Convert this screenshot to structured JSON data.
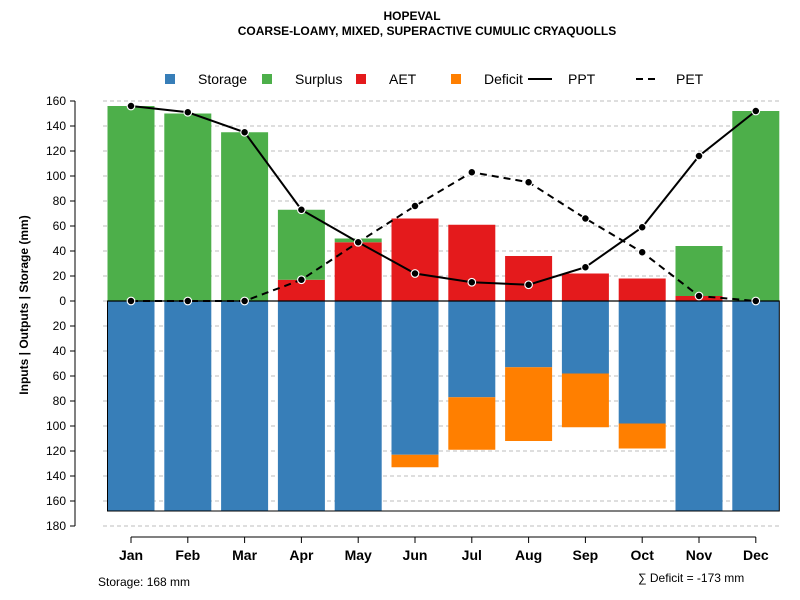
{
  "chart_data": {
    "type": "bar",
    "title": "HOPEVAL",
    "subtitle": "COARSE-LOAMY, MIXED, SUPERACTIVE CUMULIC CRYAQUOLLS",
    "ylabel": "Inputs | Outputs | Storage    (mm)",
    "ylim": [
      -180,
      160
    ],
    "ytick_values": [
      160,
      140,
      120,
      100,
      80,
      60,
      40,
      20,
      0,
      -20,
      -40,
      -60,
      -80,
      -100,
      -120,
      -140,
      -160,
      -180
    ],
    "ytick_labels": [
      "160",
      "140",
      "120",
      "100",
      "80",
      "60",
      "40",
      "20",
      "0",
      "20",
      "40",
      "60",
      "80",
      "100",
      "120",
      "140",
      "160",
      "180"
    ],
    "categories": [
      "Jan",
      "Feb",
      "Mar",
      "Apr",
      "May",
      "Jun",
      "Jul",
      "Aug",
      "Sep",
      "Oct",
      "Nov",
      "Dec"
    ],
    "legend": [
      {
        "label": "Storage",
        "kind": "square",
        "color": "#377EB8"
      },
      {
        "label": "Surplus",
        "kind": "square",
        "color": "#4DAF4A"
      },
      {
        "label": "AET",
        "kind": "square",
        "color": "#E41A1C"
      },
      {
        "label": "Deficit",
        "kind": "square",
        "color": "#FF7F00"
      },
      {
        "label": "PPT",
        "kind": "solid-line",
        "color": "#000000"
      },
      {
        "label": "PET",
        "kind": "dashed-line",
        "color": "#000000"
      }
    ],
    "series": [
      {
        "name": "Storage",
        "color": "#377EB8",
        "values": [
          168,
          168,
          168,
          168,
          168,
          123,
          77,
          53,
          58,
          98,
          168,
          168
        ]
      },
      {
        "name": "Deficit",
        "color": "#FF7F00",
        "values": [
          0,
          0,
          0,
          0,
          0,
          10,
          42,
          59,
          43,
          20,
          0,
          0
        ]
      },
      {
        "name": "AET",
        "color": "#E41A1C",
        "values": [
          0,
          0,
          0,
          17,
          47,
          66,
          61,
          36,
          22,
          18,
          4,
          0
        ]
      },
      {
        "name": "Surplus",
        "color": "#4DAF4A",
        "values": [
          156,
          150,
          135,
          56,
          3,
          0,
          0,
          0,
          0,
          0,
          40,
          152
        ]
      },
      {
        "name": "PPT",
        "color": "#000000",
        "style": "solid",
        "values": [
          156,
          151,
          135,
          73,
          47,
          22,
          15,
          13,
          27,
          59,
          116,
          152
        ]
      },
      {
        "name": "PET",
        "color": "#000000",
        "style": "dashed",
        "values": [
          0,
          0,
          0,
          17,
          47,
          76,
          103,
          95,
          66,
          39,
          4,
          0
        ]
      }
    ],
    "grid": true,
    "legend_position": "top"
  },
  "footer": {
    "storage_label": "Storage: 168 mm",
    "deficit_label": "∑ Deficit = -173 mm"
  }
}
